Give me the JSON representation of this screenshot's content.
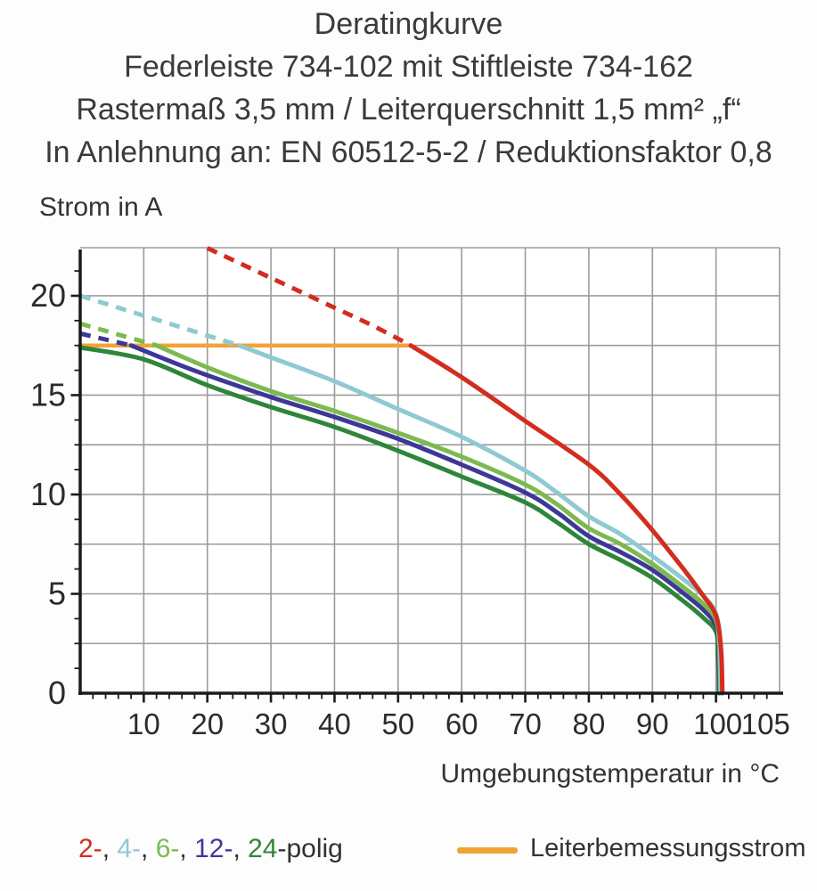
{
  "header": {
    "lines": [
      "Deratingkurve",
      "Federleiste 734-102 mit Stiftleiste 734-162",
      "Rastermaß 3,5 mm / Leiterquerschnitt 1,5 mm² „f“",
      "In Anlehnung an: EN 60512-5-2 / Reduktionsfaktor 0,8"
    ]
  },
  "colors": {
    "red_2pol": "#d32d1f",
    "cyan_4pol": "#8fc9d2",
    "lightgreen_6pol": "#7cba50",
    "indigo_12pol": "#3d3897",
    "darkgreen_24pol": "#2e8639",
    "orange_rated": "#f1a338",
    "grid": "#9b9b9b",
    "axis": "#1b1b1b",
    "text": "#3a3a3a"
  },
  "chart_data": {
    "type": "line",
    "title": "Deratingkurve",
    "xlabel": "Umgebungstemperatur in °C",
    "ylabel": "Strom in A",
    "xlim": [
      0,
      110
    ],
    "ylim": [
      0,
      22.42
    ],
    "grid": true,
    "x_grid_step": 10,
    "y_grid_step": 2.5,
    "x_minor_tick_step": 2,
    "y_minor_tick_step": 1.25,
    "x_ticks_labeled": [
      10,
      20,
      30,
      40,
      50,
      60,
      70,
      80,
      90,
      100,
      105
    ],
    "y_ticks_labeled": [
      0,
      5,
      10,
      15,
      20
    ],
    "rated_current_A": 17.5,
    "series": [
      {
        "name": "Leiterbemessungsstrom",
        "color": "#f1a338",
        "style": "solid",
        "width": 4.5,
        "points": [
          [
            0,
            17.5
          ],
          [
            52,
            17.5
          ]
        ]
      },
      {
        "name": "4-polig",
        "color": "#8fc9d2",
        "style": "dashed",
        "width": 5,
        "points": [
          [
            0,
            20.0
          ],
          [
            8,
            19.2
          ],
          [
            16,
            18.4
          ],
          [
            25,
            17.5
          ]
        ]
      },
      {
        "name": "6-polig",
        "color": "#7cba50",
        "style": "dashed",
        "width": 5,
        "points": [
          [
            0,
            18.6
          ],
          [
            6,
            18.05
          ],
          [
            12,
            17.5
          ]
        ]
      },
      {
        "name": "12-polig",
        "color": "#3d3897",
        "style": "dashed",
        "width": 5,
        "points": [
          [
            0,
            18.1
          ],
          [
            4,
            17.8
          ],
          [
            8,
            17.5
          ]
        ]
      },
      {
        "name": "2-polig",
        "color": "#d32d1f",
        "style": "dashed",
        "width": 5,
        "points": [
          [
            20,
            22.4
          ],
          [
            30,
            20.9
          ],
          [
            40,
            19.4
          ],
          [
            46,
            18.5
          ],
          [
            52,
            17.5
          ]
        ]
      },
      {
        "name": "24-polig",
        "color": "#2e8639",
        "style": "solid",
        "width": 5,
        "points": [
          [
            0,
            17.4
          ],
          [
            10,
            16.8
          ],
          [
            20,
            15.5
          ],
          [
            30,
            14.4
          ],
          [
            40,
            13.4
          ],
          [
            50,
            12.2
          ],
          [
            60,
            10.9
          ],
          [
            70,
            9.6
          ],
          [
            75,
            8.6
          ],
          [
            80,
            7.5
          ],
          [
            85,
            6.7
          ],
          [
            90,
            5.8
          ],
          [
            95,
            4.6
          ],
          [
            98,
            3.8
          ],
          [
            100,
            3.1
          ],
          [
            100.3,
            2.0
          ],
          [
            100.5,
            0
          ]
        ]
      },
      {
        "name": "12-polig",
        "color": "#3d3897",
        "style": "solid",
        "width": 5,
        "points": [
          [
            8,
            17.5
          ],
          [
            15,
            16.6
          ],
          [
            20,
            16.0
          ],
          [
            30,
            14.9
          ],
          [
            40,
            13.9
          ],
          [
            50,
            12.8
          ],
          [
            60,
            11.5
          ],
          [
            70,
            10.1
          ],
          [
            75,
            9.1
          ],
          [
            80,
            7.9
          ],
          [
            85,
            7.1
          ],
          [
            90,
            6.2
          ],
          [
            95,
            5.0
          ],
          [
            98,
            4.2
          ],
          [
            100,
            3.4
          ],
          [
            100.4,
            2.2
          ],
          [
            100.6,
            0
          ]
        ]
      },
      {
        "name": "6-polig",
        "color": "#7cba50",
        "style": "solid",
        "width": 5,
        "points": [
          [
            12,
            17.5
          ],
          [
            20,
            16.4
          ],
          [
            30,
            15.2
          ],
          [
            40,
            14.2
          ],
          [
            50,
            13.1
          ],
          [
            60,
            11.9
          ],
          [
            70,
            10.5
          ],
          [
            75,
            9.5
          ],
          [
            80,
            8.3
          ],
          [
            85,
            7.5
          ],
          [
            90,
            6.5
          ],
          [
            95,
            5.3
          ],
          [
            98,
            4.5
          ],
          [
            100,
            3.7
          ],
          [
            100.5,
            2.4
          ],
          [
            100.7,
            0
          ]
        ]
      },
      {
        "name": "4-polig",
        "color": "#8fc9d2",
        "style": "solid",
        "width": 5,
        "points": [
          [
            25,
            17.5
          ],
          [
            30,
            16.9
          ],
          [
            40,
            15.7
          ],
          [
            50,
            14.3
          ],
          [
            60,
            12.9
          ],
          [
            70,
            11.2
          ],
          [
            75,
            10.1
          ],
          [
            80,
            8.9
          ],
          [
            85,
            8.0
          ],
          [
            90,
            6.9
          ],
          [
            95,
            5.7
          ],
          [
            98,
            4.9
          ],
          [
            100,
            4.0
          ],
          [
            100.6,
            2.6
          ],
          [
            100.8,
            0
          ]
        ]
      },
      {
        "name": "2-polig",
        "color": "#d32d1f",
        "style": "solid",
        "width": 5,
        "points": [
          [
            52,
            17.5
          ],
          [
            60,
            15.9
          ],
          [
            70,
            13.7
          ],
          [
            80,
            11.5
          ],
          [
            85,
            10.0
          ],
          [
            90,
            8.2
          ],
          [
            95,
            6.2
          ],
          [
            98,
            4.9
          ],
          [
            100,
            3.9
          ],
          [
            100.8,
            2.2
          ],
          [
            101,
            0
          ]
        ]
      }
    ],
    "legend": {
      "poles": {
        "items": [
          {
            "label": "2-",
            "color": "#d32d1f"
          },
          {
            "label": "4-",
            "color": "#8fc9d2"
          },
          {
            "label": "6-",
            "color": "#7cba50"
          },
          {
            "label": "12-",
            "color": "#3d3897"
          },
          {
            "label": "24",
            "color": "#2e8639"
          }
        ],
        "separator": ", ",
        "suffix": "-polig"
      },
      "rated_current": {
        "label": "Leiterbemessungsstrom",
        "color": "#f1a338"
      }
    }
  }
}
